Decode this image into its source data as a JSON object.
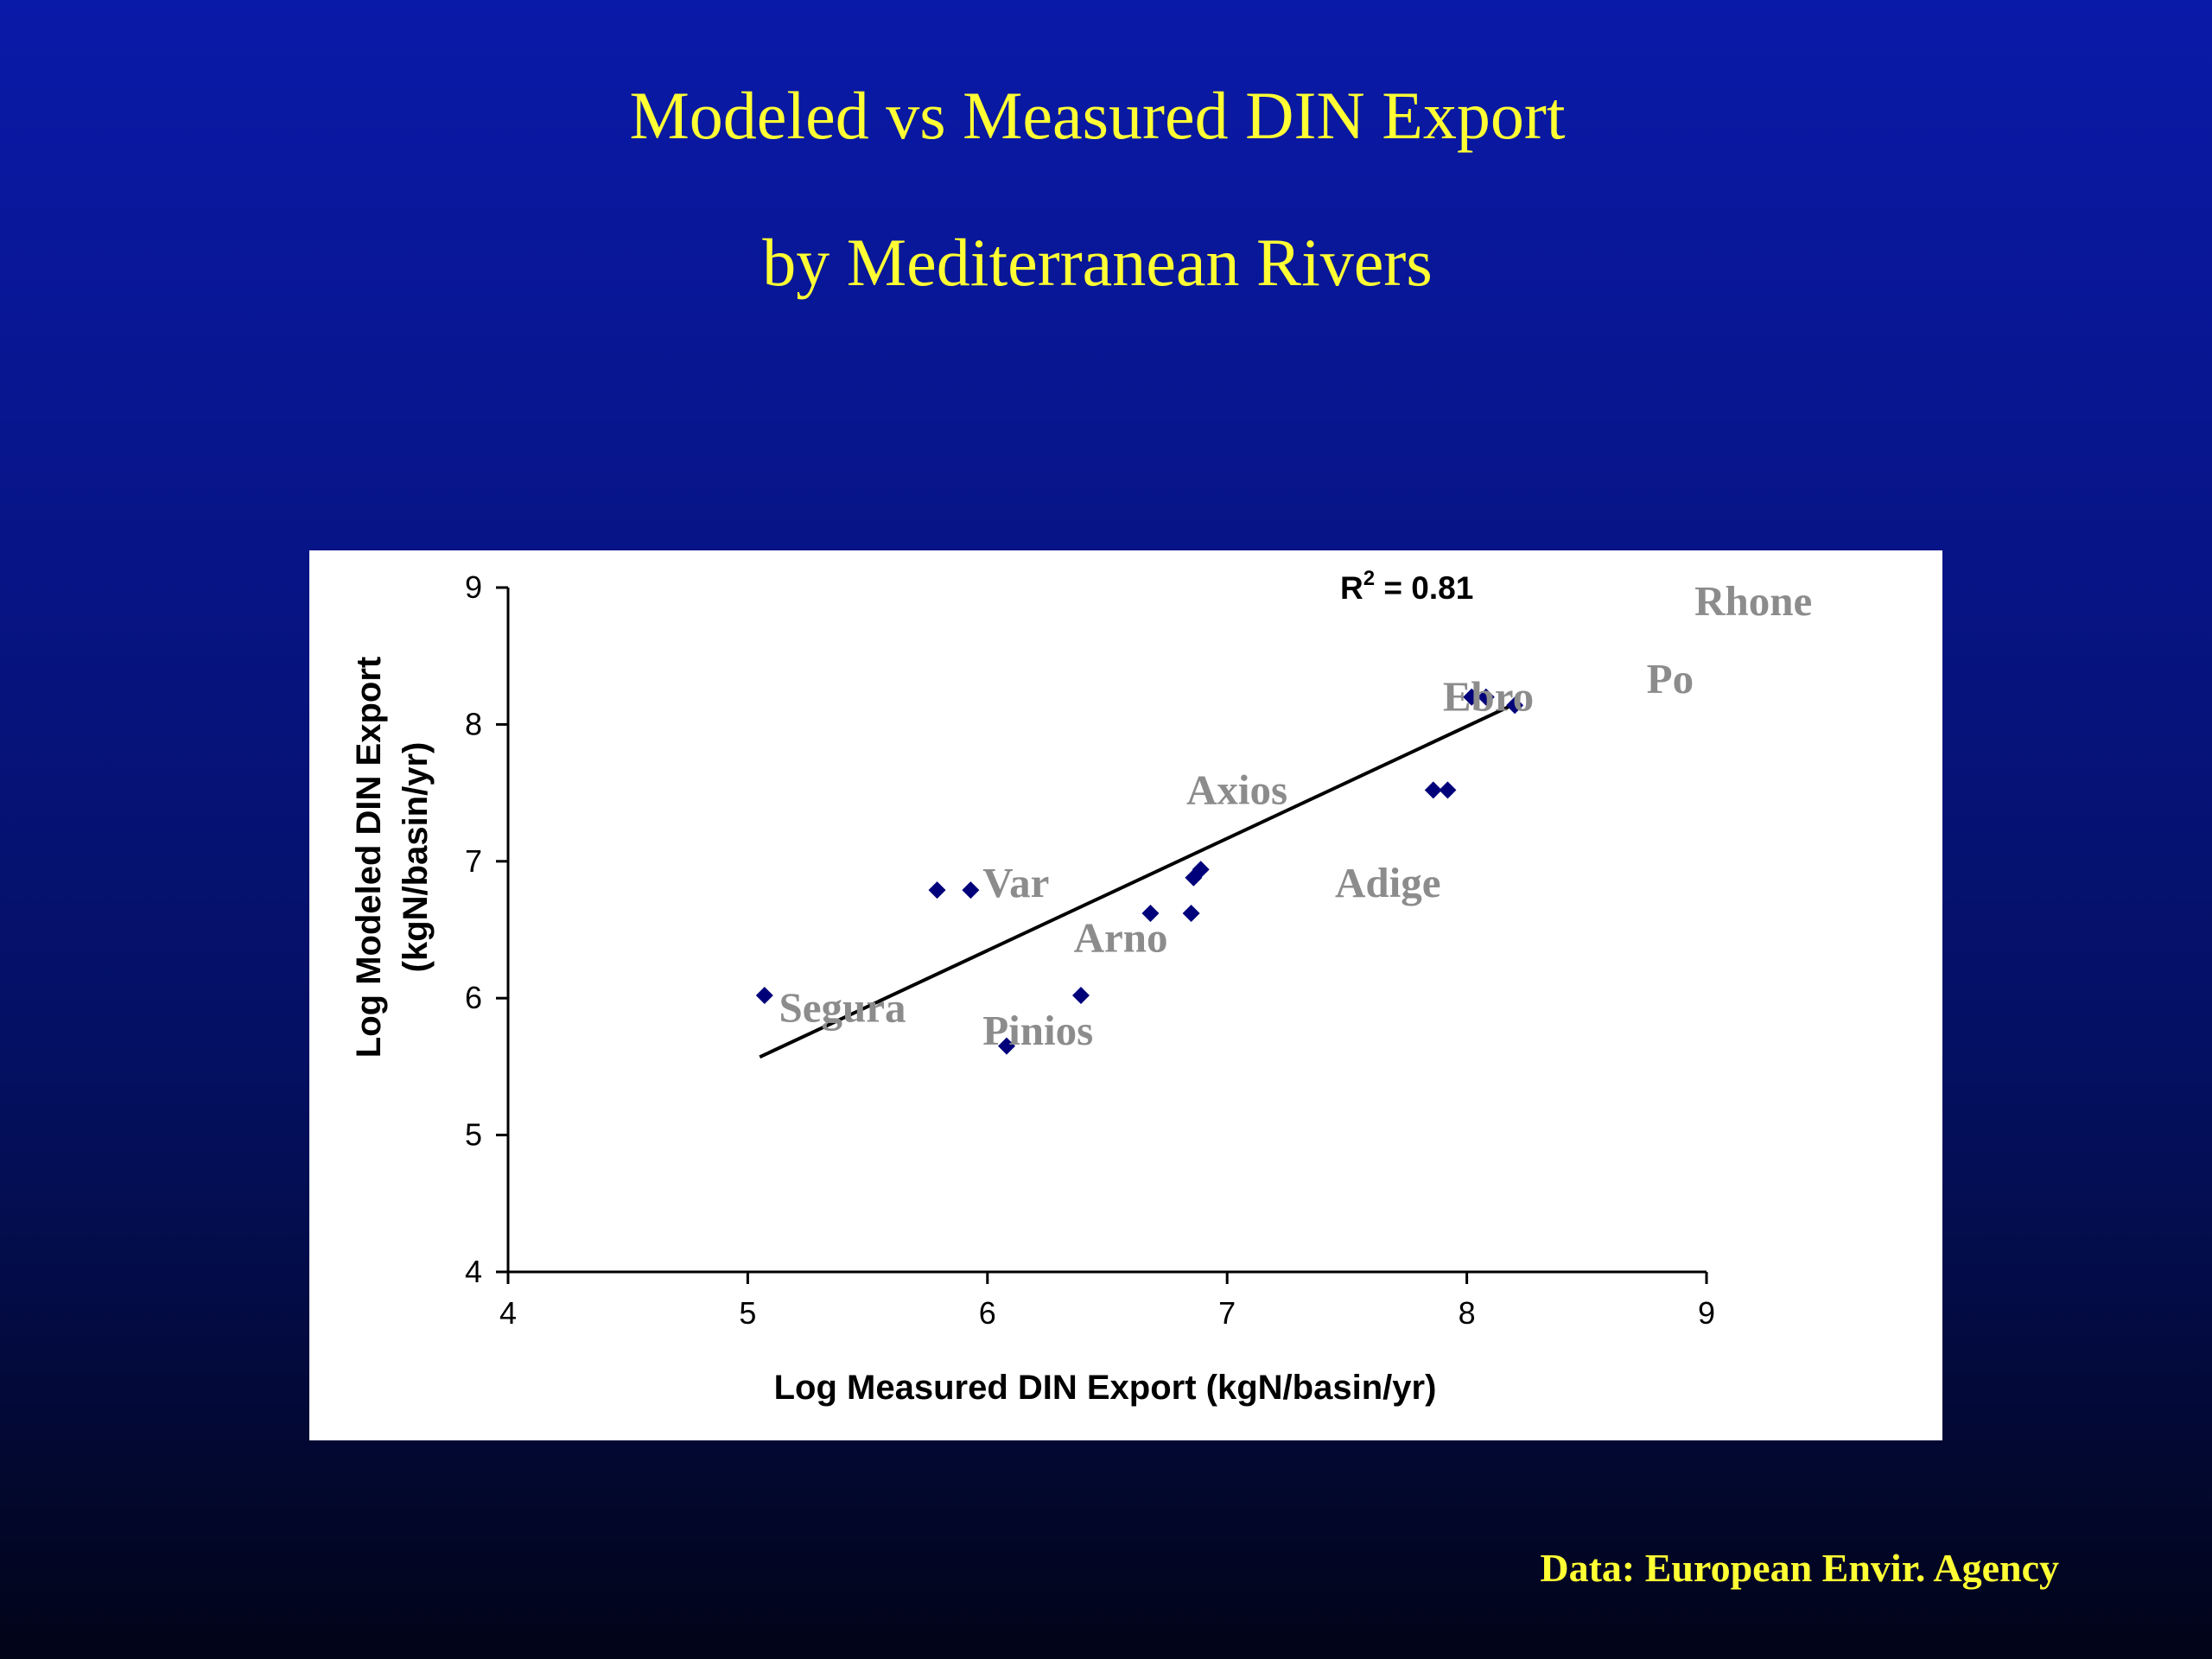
{
  "slide": {
    "title_line1": "Modeled vs Measured DIN Export",
    "title_line2": "by Mediterranean Rivers",
    "source_note": "Data: European Envir. Agency",
    "title_color": "#ffff33",
    "background_top": "#0a1aa8",
    "background_bottom": "#020418"
  },
  "chart_data": {
    "type": "scatter",
    "title": "",
    "xlabel": "Log Measured DIN Export (kgN/basin/yr)",
    "ylabel_line1": "Log Modeled DIN Export",
    "ylabel_line2": "(kgN/basin/yr)",
    "xlim": [
      4,
      9
    ],
    "ylim": [
      4,
      9
    ],
    "x_ticks": [
      "4",
      "5",
      "6",
      "7",
      "8",
      "9"
    ],
    "y_ticks": [
      "4",
      "5",
      "6",
      "7",
      "8",
      "9"
    ],
    "grid": false,
    "marker_color": "#00007a",
    "trendline": {
      "x": [
        5.05,
        8.2
      ],
      "y": [
        5.57,
        8.15
      ]
    },
    "r2_prefix": "R",
    "r2_exponent": "2",
    "r2_value": " = 0.81",
    "points": [
      {
        "x": 5.07,
        "y": 6.02
      },
      {
        "x": 5.79,
        "y": 6.79
      },
      {
        "x": 5.93,
        "y": 6.79
      },
      {
        "x": 6.08,
        "y": 5.65
      },
      {
        "x": 6.39,
        "y": 6.02
      },
      {
        "x": 6.68,
        "y": 6.62
      },
      {
        "x": 6.85,
        "y": 6.62
      },
      {
        "x": 6.86,
        "y": 6.88
      },
      {
        "x": 6.89,
        "y": 6.94
      },
      {
        "x": 7.86,
        "y": 7.52
      },
      {
        "x": 7.92,
        "y": 7.52
      },
      {
        "x": 8.02,
        "y": 8.2
      },
      {
        "x": 8.08,
        "y": 8.2
      },
      {
        "x": 8.2,
        "y": 8.14
      }
    ],
    "river_labels": [
      {
        "text": "Rhone",
        "x": 8.95,
        "y": 8.9
      },
      {
        "text": "Po",
        "x": 8.75,
        "y": 8.33
      },
      {
        "text": "Ebro",
        "x": 7.9,
        "y": 8.2
      },
      {
        "text": "Axios",
        "x": 6.83,
        "y": 7.52
      },
      {
        "text": "Var",
        "x": 5.98,
        "y": 6.84
      },
      {
        "text": "Adige",
        "x": 7.45,
        "y": 6.84
      },
      {
        "text": "Arno",
        "x": 6.36,
        "y": 6.44
      },
      {
        "text": "Segura",
        "x": 5.13,
        "y": 5.93
      },
      {
        "text": "Pinios",
        "x": 5.98,
        "y": 5.76
      }
    ]
  }
}
